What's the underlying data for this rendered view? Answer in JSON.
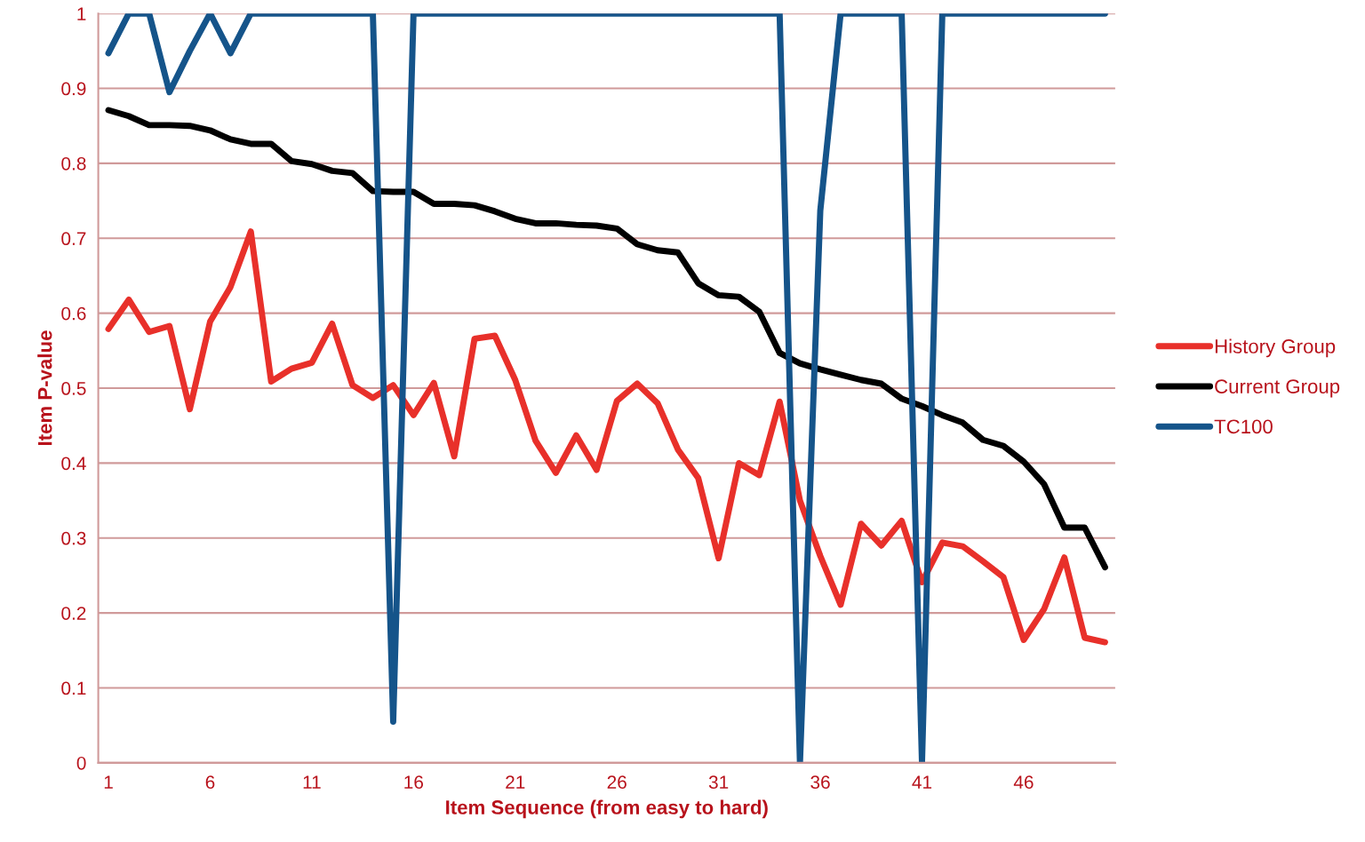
{
  "chart_data": {
    "type": "line",
    "xlabel": "Item Sequence (from easy to hard)",
    "ylabel": "Item P-value",
    "categories": [
      "1",
      null,
      null,
      null,
      null,
      "6",
      null,
      null,
      null,
      null,
      "11",
      null,
      null,
      null,
      null,
      "16",
      null,
      null,
      null,
      null,
      "21",
      null,
      null,
      null,
      null,
      "26",
      null,
      null,
      null,
      null,
      "31",
      null,
      null,
      null,
      null,
      "36",
      null,
      null,
      null,
      null,
      "41",
      null,
      null,
      null,
      null,
      "46",
      null,
      null,
      null,
      null
    ],
    "series": [
      {
        "name": "History Group",
        "color": "#e8302a",
        "values": [
          0.579,
          0.618,
          0.575,
          0.583,
          0.472,
          0.589,
          0.635,
          0.709,
          0.509,
          0.526,
          0.534,
          0.586,
          0.504,
          0.487,
          0.504,
          0.464,
          0.507,
          0.409,
          0.566,
          0.57,
          0.511,
          0.43,
          0.387,
          0.437,
          0.391,
          0.483,
          0.506,
          0.48,
          0.418,
          0.38,
          0.273,
          0.4,
          0.384,
          0.482,
          0.35,
          0.276,
          0.211,
          0.319,
          0.29,
          0.323,
          0.241,
          0.294,
          0.289,
          0.269,
          0.248,
          0.164,
          0.205,
          0.274,
          0.167,
          0.161
        ]
      },
      {
        "name": "Current Group",
        "color": "#000000",
        "values": [
          0.871,
          0.863,
          0.851,
          0.851,
          0.85,
          0.844,
          0.832,
          0.826,
          0.826,
          0.803,
          0.799,
          0.79,
          0.787,
          0.763,
          0.762,
          0.762,
          0.746,
          0.746,
          0.744,
          0.736,
          0.726,
          0.72,
          0.72,
          0.718,
          0.717,
          0.713,
          0.692,
          0.684,
          0.681,
          0.64,
          0.624,
          0.622,
          0.602,
          0.547,
          0.533,
          0.525,
          0.518,
          0.511,
          0.506,
          0.486,
          0.476,
          0.464,
          0.454,
          0.431,
          0.423,
          0.402,
          0.372,
          0.314,
          0.314,
          0.261
        ]
      },
      {
        "name": "TC100",
        "color": "#15548a",
        "values": [
          0.947,
          1,
          1,
          0.895,
          0.95,
          1,
          0.947,
          1,
          1,
          1,
          1,
          1,
          1,
          1,
          0.055,
          1,
          1,
          1,
          1,
          1,
          1,
          1,
          1,
          1,
          1,
          1,
          1,
          1,
          1,
          1,
          1,
          1,
          1,
          1,
          0,
          0.737,
          1,
          1,
          1,
          1,
          0,
          1,
          1,
          1,
          1,
          1,
          1,
          1,
          1,
          1
        ]
      }
    ],
    "ylim": [
      0,
      1
    ],
    "yticks": [
      0,
      0.1,
      0.2,
      0.3,
      0.4,
      0.5,
      0.6,
      0.7,
      0.8,
      0.9,
      1
    ],
    "grid": "y",
    "legend": "right",
    "marker": "none",
    "line_style": "solid"
  }
}
